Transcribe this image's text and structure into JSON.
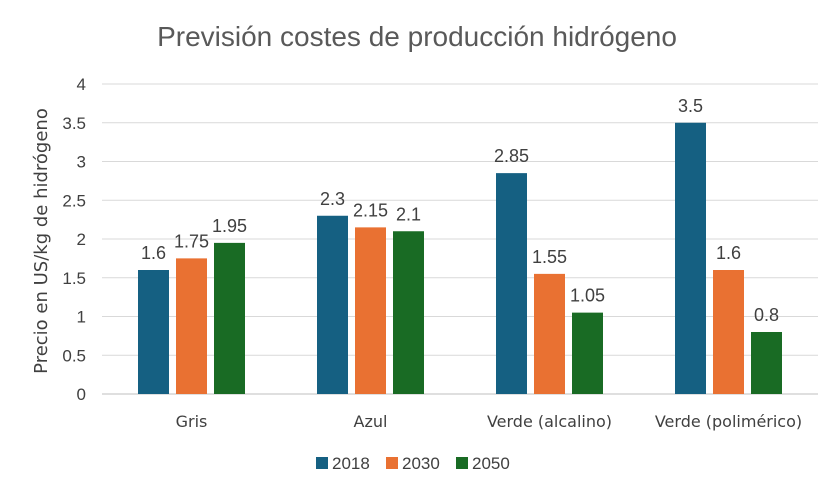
{
  "chart_data": {
    "type": "bar",
    "title": "Previsión costes de producción hidrógeno",
    "ylabel": "Precio en US/kg de hidrógeno",
    "xlabel": "",
    "ylim": [
      0,
      4
    ],
    "yticks": [
      0,
      0.5,
      1,
      1.5,
      2,
      2.5,
      3,
      3.5,
      4
    ],
    "ytick_labels": [
      "0",
      "0.5",
      "1",
      "1.5",
      "2",
      "2.5",
      "3",
      "3.5",
      "4"
    ],
    "grid": true,
    "legend_position": "bottom",
    "categories": [
      "Gris",
      "Azul",
      "Verde (alcalino)",
      "Verde (polimérico)"
    ],
    "series": [
      {
        "name": "2018",
        "color": "#156082",
        "values": [
          1.6,
          2.3,
          2.85,
          3.5
        ],
        "labels": [
          "1.6",
          "2.3",
          "2.85",
          "3.5"
        ]
      },
      {
        "name": "2030",
        "color": "#E97132",
        "values": [
          1.75,
          2.15,
          1.55,
          1.6
        ],
        "labels": [
          "1.75",
          "2.15",
          "1.55",
          "1.6"
        ]
      },
      {
        "name": "2050",
        "color": "#196B24",
        "values": [
          1.95,
          2.1,
          1.05,
          0.8
        ],
        "labels": [
          "1.95",
          "2.1",
          "1.05",
          "0.8"
        ]
      }
    ]
  }
}
